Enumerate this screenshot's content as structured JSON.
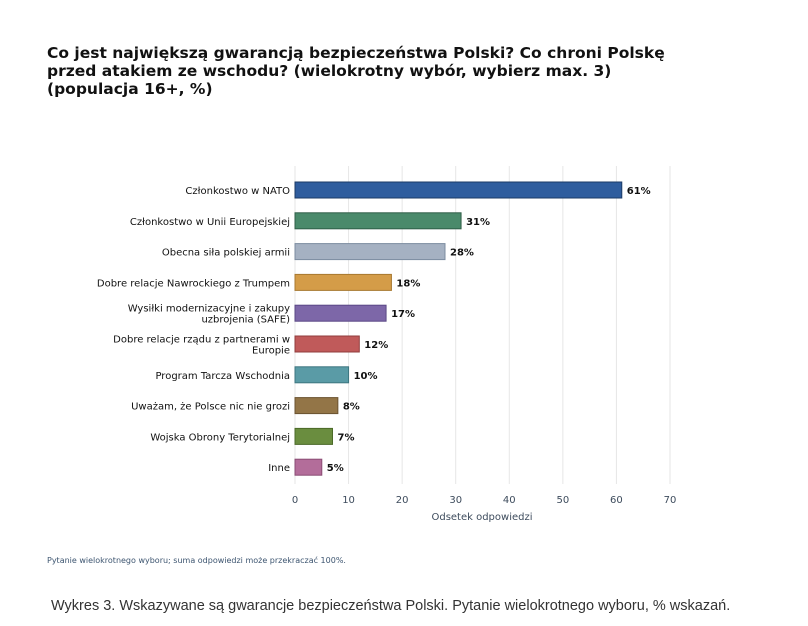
{
  "chart_data": {
    "type": "bar",
    "orientation": "horizontal",
    "title": "Co jest największą gwarancją bezpieczeństwa Polski? Co chroni Polskę przed atakiem ze wschodu? (wielokrotny wybór, wybierz max. 3) (populacja 16+, %)",
    "xlabel": "Odsetek odpowiedzi",
    "ylabel": "",
    "xlim": [
      0,
      70
    ],
    "xticks": [
      "0",
      "10",
      "20",
      "30",
      "40",
      "50",
      "60",
      "70"
    ],
    "grid": true,
    "categories": [
      [
        "Członkostwo w NATO"
      ],
      [
        "Członkostwo w Unii Europejskiej"
      ],
      [
        "Obecna siła polskiej armii"
      ],
      [
        "Dobre relacje Nawrockiego z Trumpem"
      ],
      [
        "Wysiłki modernizacyjne i zakupy",
        "uzbrojenia (SAFE)"
      ],
      [
        "Dobre relacje rządu z partnerami w",
        "Europie"
      ],
      [
        "Program Tarcza Wschodnia"
      ],
      [
        "Uważam, że Polsce nic nie grozi"
      ],
      [
        "Wojska Obrony Terytorialnej"
      ],
      [
        "Inne"
      ]
    ],
    "values": [
      61,
      31,
      28,
      18,
      17,
      12,
      10,
      8,
      7,
      5
    ],
    "value_labels": [
      "61%",
      "31%",
      "28%",
      "18%",
      "17%",
      "12%",
      "10%",
      "8%",
      "7%",
      "5%"
    ],
    "colors": [
      "#2f5d9e",
      "#4a8a6b",
      "#a5b1c2",
      "#d49c48",
      "#7d67a8",
      "#c05a5a",
      "#5a9ba6",
      "#937547",
      "#6a8d3f",
      "#b36d9a"
    ],
    "edge_colors": [
      "#1b3a66",
      "#2f5e47",
      "#7c8ca0",
      "#a87830",
      "#5a4885",
      "#913c3c",
      "#3d7680",
      "#6b5330",
      "#4b6a28",
      "#8a4c74"
    ]
  },
  "footnote": "Pytanie wielokrotnego wyboru; suma odpowiedzi może przekraczać 100%.",
  "caption": "Wykres 3. Wskazywane są gwarancje bezpieczeństwa Polski. Pytanie wielokrotnego wyboru, % wskazań."
}
